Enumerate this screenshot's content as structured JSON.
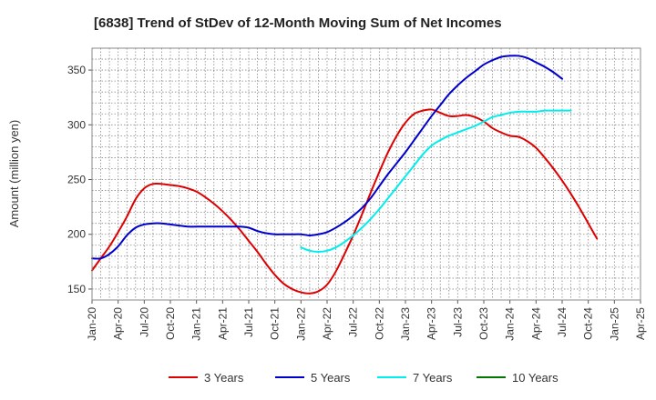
{
  "chart_data": {
    "type": "line",
    "title": "[6838]  Trend of StDev of 12-Month Moving Sum of Net Incomes",
    "ylabel": "Amount (million yen)",
    "xlabel": "",
    "ylim": [
      140,
      370
    ],
    "yticks": [
      150,
      200,
      250,
      300,
      350
    ],
    "x_tick_labels": [
      "Jan-20",
      "Apr-20",
      "Jul-20",
      "Oct-20",
      "Jan-21",
      "Apr-21",
      "Jul-21",
      "Oct-21",
      "Jan-22",
      "Apr-22",
      "Jul-22",
      "Oct-22",
      "Jan-23",
      "Apr-23",
      "Jul-23",
      "Oct-23",
      "Jan-24",
      "Apr-24",
      "Jul-24",
      "Oct-24",
      "Jan-25",
      "Apr-25"
    ],
    "grid": true,
    "legend_position": "bottom",
    "series": [
      {
        "name": "3 Years",
        "color": "#dd0000",
        "points": [
          [
            "Jan-20",
            167
          ],
          [
            "Feb-20",
            178
          ],
          [
            "Mar-20",
            189
          ],
          [
            "Apr-20",
            202
          ],
          [
            "May-20",
            216
          ],
          [
            "Jun-20",
            232
          ],
          [
            "Jul-20",
            242
          ],
          [
            "Aug-20",
            246
          ],
          [
            "Sep-20",
            246
          ],
          [
            "Oct-20",
            245
          ],
          [
            "Nov-20",
            244
          ],
          [
            "Dec-20",
            242
          ],
          [
            "Jan-21",
            239
          ],
          [
            "Feb-21",
            234
          ],
          [
            "Mar-21",
            228
          ],
          [
            "Apr-21",
            221
          ],
          [
            "May-21",
            213
          ],
          [
            "Jun-21",
            204
          ],
          [
            "Jul-21",
            194
          ],
          [
            "Aug-21",
            184
          ],
          [
            "Sep-21",
            173
          ],
          [
            "Oct-21",
            163
          ],
          [
            "Nov-21",
            155
          ],
          [
            "Dec-21",
            150
          ],
          [
            "Jan-22",
            147
          ],
          [
            "Feb-22",
            146
          ],
          [
            "Mar-22",
            148
          ],
          [
            "Apr-22",
            154
          ],
          [
            "May-22",
            166
          ],
          [
            "Jun-22",
            182
          ],
          [
            "Jul-22",
            199
          ],
          [
            "Aug-22",
            218
          ],
          [
            "Sep-22",
            238
          ],
          [
            "Oct-22",
            257
          ],
          [
            "Nov-22",
            275
          ],
          [
            "Dec-22",
            290
          ],
          [
            "Jan-23",
            302
          ],
          [
            "Feb-23",
            310
          ],
          [
            "Mar-23",
            313
          ],
          [
            "Apr-23",
            314
          ],
          [
            "May-23",
            311
          ],
          [
            "Jun-23",
            308
          ],
          [
            "Jul-23",
            308
          ],
          [
            "Aug-23",
            309
          ],
          [
            "Sep-23",
            307
          ],
          [
            "Oct-23",
            303
          ],
          [
            "Nov-23",
            297
          ],
          [
            "Dec-23",
            293
          ],
          [
            "Jan-24",
            290
          ],
          [
            "Feb-24",
            289
          ],
          [
            "Mar-24",
            285
          ],
          [
            "Apr-24",
            279
          ],
          [
            "May-24",
            270
          ],
          [
            "Jun-24",
            260
          ],
          [
            "Jul-24",
            249
          ],
          [
            "Aug-24",
            237
          ],
          [
            "Sep-24",
            224
          ],
          [
            "Oct-24",
            210
          ],
          [
            "Nov-24",
            196
          ]
        ]
      },
      {
        "name": "5 Years",
        "color": "#0000cc",
        "points": [
          [
            "Jan-20",
            178
          ],
          [
            "Feb-20",
            178
          ],
          [
            "Mar-20",
            182
          ],
          [
            "Apr-20",
            189
          ],
          [
            "May-20",
            199
          ],
          [
            "Jun-20",
            206
          ],
          [
            "Jul-20",
            209
          ],
          [
            "Aug-20",
            210
          ],
          [
            "Sep-20",
            210
          ],
          [
            "Oct-20",
            209
          ],
          [
            "Nov-20",
            208
          ],
          [
            "Dec-20",
            207
          ],
          [
            "Jan-21",
            207
          ],
          [
            "Feb-21",
            207
          ],
          [
            "Mar-21",
            207
          ],
          [
            "Apr-21",
            207
          ],
          [
            "May-21",
            207
          ],
          [
            "Jun-21",
            207
          ],
          [
            "Jul-21",
            206
          ],
          [
            "Aug-21",
            203
          ],
          [
            "Sep-21",
            201
          ],
          [
            "Oct-21",
            200
          ],
          [
            "Nov-21",
            200
          ],
          [
            "Dec-21",
            200
          ],
          [
            "Jan-22",
            200
          ],
          [
            "Feb-22",
            199
          ],
          [
            "Mar-22",
            200
          ],
          [
            "Apr-22",
            202
          ],
          [
            "May-22",
            206
          ],
          [
            "Jun-22",
            211
          ],
          [
            "Jul-22",
            217
          ],
          [
            "Aug-22",
            224
          ],
          [
            "Sep-22",
            233
          ],
          [
            "Oct-22",
            244
          ],
          [
            "Nov-22",
            255
          ],
          [
            "Dec-22",
            265
          ],
          [
            "Jan-23",
            275
          ],
          [
            "Feb-23",
            286
          ],
          [
            "Mar-23",
            297
          ],
          [
            "Apr-23",
            308
          ],
          [
            "May-23",
            318
          ],
          [
            "Jun-23",
            328
          ],
          [
            "Jul-23",
            336
          ],
          [
            "Aug-23",
            343
          ],
          [
            "Sep-23",
            349
          ],
          [
            "Oct-23",
            355
          ],
          [
            "Nov-23",
            359
          ],
          [
            "Dec-23",
            362
          ],
          [
            "Jan-24",
            363
          ],
          [
            "Feb-24",
            363
          ],
          [
            "Mar-24",
            361
          ],
          [
            "Apr-24",
            357
          ],
          [
            "May-24",
            353
          ],
          [
            "Jun-24",
            348
          ],
          [
            "Jul-24",
            342
          ]
        ]
      },
      {
        "name": "7 Years",
        "color": "#00eeee",
        "points": [
          [
            "Jan-22",
            188
          ],
          [
            "Feb-22",
            185
          ],
          [
            "Mar-22",
            184
          ],
          [
            "Apr-22",
            185
          ],
          [
            "May-22",
            188
          ],
          [
            "Jun-22",
            193
          ],
          [
            "Jul-22",
            199
          ],
          [
            "Aug-22",
            206
          ],
          [
            "Sep-22",
            214
          ],
          [
            "Oct-22",
            223
          ],
          [
            "Nov-22",
            233
          ],
          [
            "Dec-22",
            243
          ],
          [
            "Jan-23",
            253
          ],
          [
            "Feb-23",
            263
          ],
          [
            "Mar-23",
            273
          ],
          [
            "Apr-23",
            281
          ],
          [
            "May-23",
            286
          ],
          [
            "Jun-23",
            290
          ],
          [
            "Jul-23",
            293
          ],
          [
            "Aug-23",
            296
          ],
          [
            "Sep-23",
            299
          ],
          [
            "Oct-23",
            303
          ],
          [
            "Nov-23",
            307
          ],
          [
            "Dec-23",
            309
          ],
          [
            "Jan-24",
            311
          ],
          [
            "Feb-24",
            312
          ],
          [
            "Mar-24",
            312
          ],
          [
            "Apr-24",
            312
          ],
          [
            "May-24",
            313
          ],
          [
            "Jun-24",
            313
          ],
          [
            "Jul-24",
            313
          ],
          [
            "Aug-24",
            313
          ]
        ]
      },
      {
        "name": "10 Years",
        "color": "#007700",
        "points": []
      }
    ]
  }
}
